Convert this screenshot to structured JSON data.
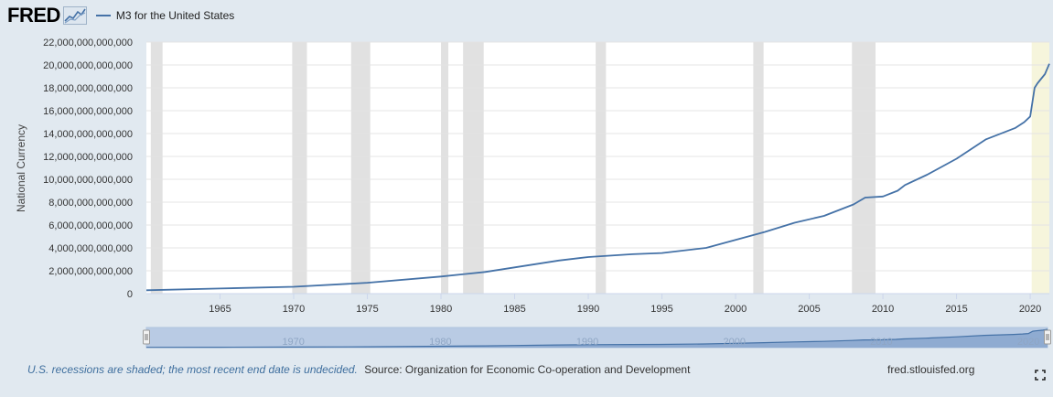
{
  "header": {
    "logo": "FRED",
    "series_label": "M3 for the United States"
  },
  "footer": {
    "recession_note": "U.S. recessions are shaded; the most recent end date is undecided.",
    "source": "Source: Organization for Economic Co-operation and Development",
    "site": "fred.stlouisfed.org"
  },
  "colors": {
    "line": "#4572a7",
    "recession": "#e1e1e1",
    "recent_recession": "#f6f5dc",
    "navigator_fill": "#b9cbe4",
    "navigator_line": "#4572a7"
  },
  "chart_data": {
    "type": "line",
    "title": "M3 for the United States",
    "xlabel": "",
    "ylabel": "National Currency",
    "xlim": [
      1960.0,
      2021.3
    ],
    "ylim": [
      0,
      22000000000000
    ],
    "y_ticks": [
      0,
      2000000000000,
      4000000000000,
      6000000000000,
      8000000000000,
      10000000000000,
      12000000000000,
      14000000000000,
      16000000000000,
      18000000000000,
      20000000000000,
      22000000000000
    ],
    "y_tick_labels": [
      "0",
      "2,000,000,000,000",
      "4,000,000,000,000",
      "6,000,000,000,000",
      "8,000,000,000,000",
      "10,000,000,000,000",
      "12,000,000,000,000",
      "14,000,000,000,000",
      "16,000,000,000,000",
      "18,000,000,000,000",
      "20,000,000,000,000",
      "22,000,000,000,000"
    ],
    "x_ticks": [
      1965,
      1970,
      1975,
      1980,
      1985,
      1990,
      1995,
      2000,
      2005,
      2010,
      2015,
      2020
    ],
    "x_tick_labels": [
      "1965",
      "1970",
      "1975",
      "1980",
      "1985",
      "1990",
      "1995",
      "2000",
      "2005",
      "2010",
      "2015",
      "2020"
    ],
    "recessions": [
      {
        "start": 1960.3,
        "end": 1961.1
      },
      {
        "start": 1969.9,
        "end": 1970.9
      },
      {
        "start": 1973.9,
        "end": 1975.2
      },
      {
        "start": 1980.0,
        "end": 1980.5
      },
      {
        "start": 1981.5,
        "end": 1982.9
      },
      {
        "start": 1990.5,
        "end": 1991.2
      },
      {
        "start": 2001.2,
        "end": 2001.9
      },
      {
        "start": 2007.9,
        "end": 2009.5
      }
    ],
    "recent_recession": {
      "start": 2020.1,
      "end": 2021.3
    },
    "navigator_labels": [
      "1970",
      "1980",
      "1990",
      "2000",
      "2010",
      "2020"
    ],
    "series": [
      {
        "name": "M3 for the United States",
        "x": [
          1960.0,
          1965.0,
          1970.0,
          1975.0,
          1980.0,
          1983.0,
          1985.0,
          1988.0,
          1990.0,
          1993.0,
          1995.0,
          1998.0,
          2000.0,
          2002.0,
          2004.0,
          2006.0,
          2008.0,
          2008.8,
          2010.0,
          2011.0,
          2011.5,
          2013.0,
          2015.0,
          2017.0,
          2019.0,
          2019.6,
          2020.0,
          2020.3,
          2020.5,
          2021.0,
          2021.3
        ],
        "y": [
          300000000000,
          450000000000,
          600000000000,
          950000000000,
          1500000000000,
          1900000000000,
          2300000000000,
          2900000000000,
          3200000000000,
          3450000000000,
          3550000000000,
          4000000000000,
          4700000000000,
          5400000000000,
          6200000000000,
          6800000000000,
          7800000000000,
          8400000000000,
          8500000000000,
          9000000000000,
          9500000000000,
          10400000000000,
          11800000000000,
          13500000000000,
          14500000000000,
          15000000000000,
          15500000000000,
          18000000000000,
          18400000000000,
          19200000000000,
          20100000000000
        ]
      }
    ]
  }
}
